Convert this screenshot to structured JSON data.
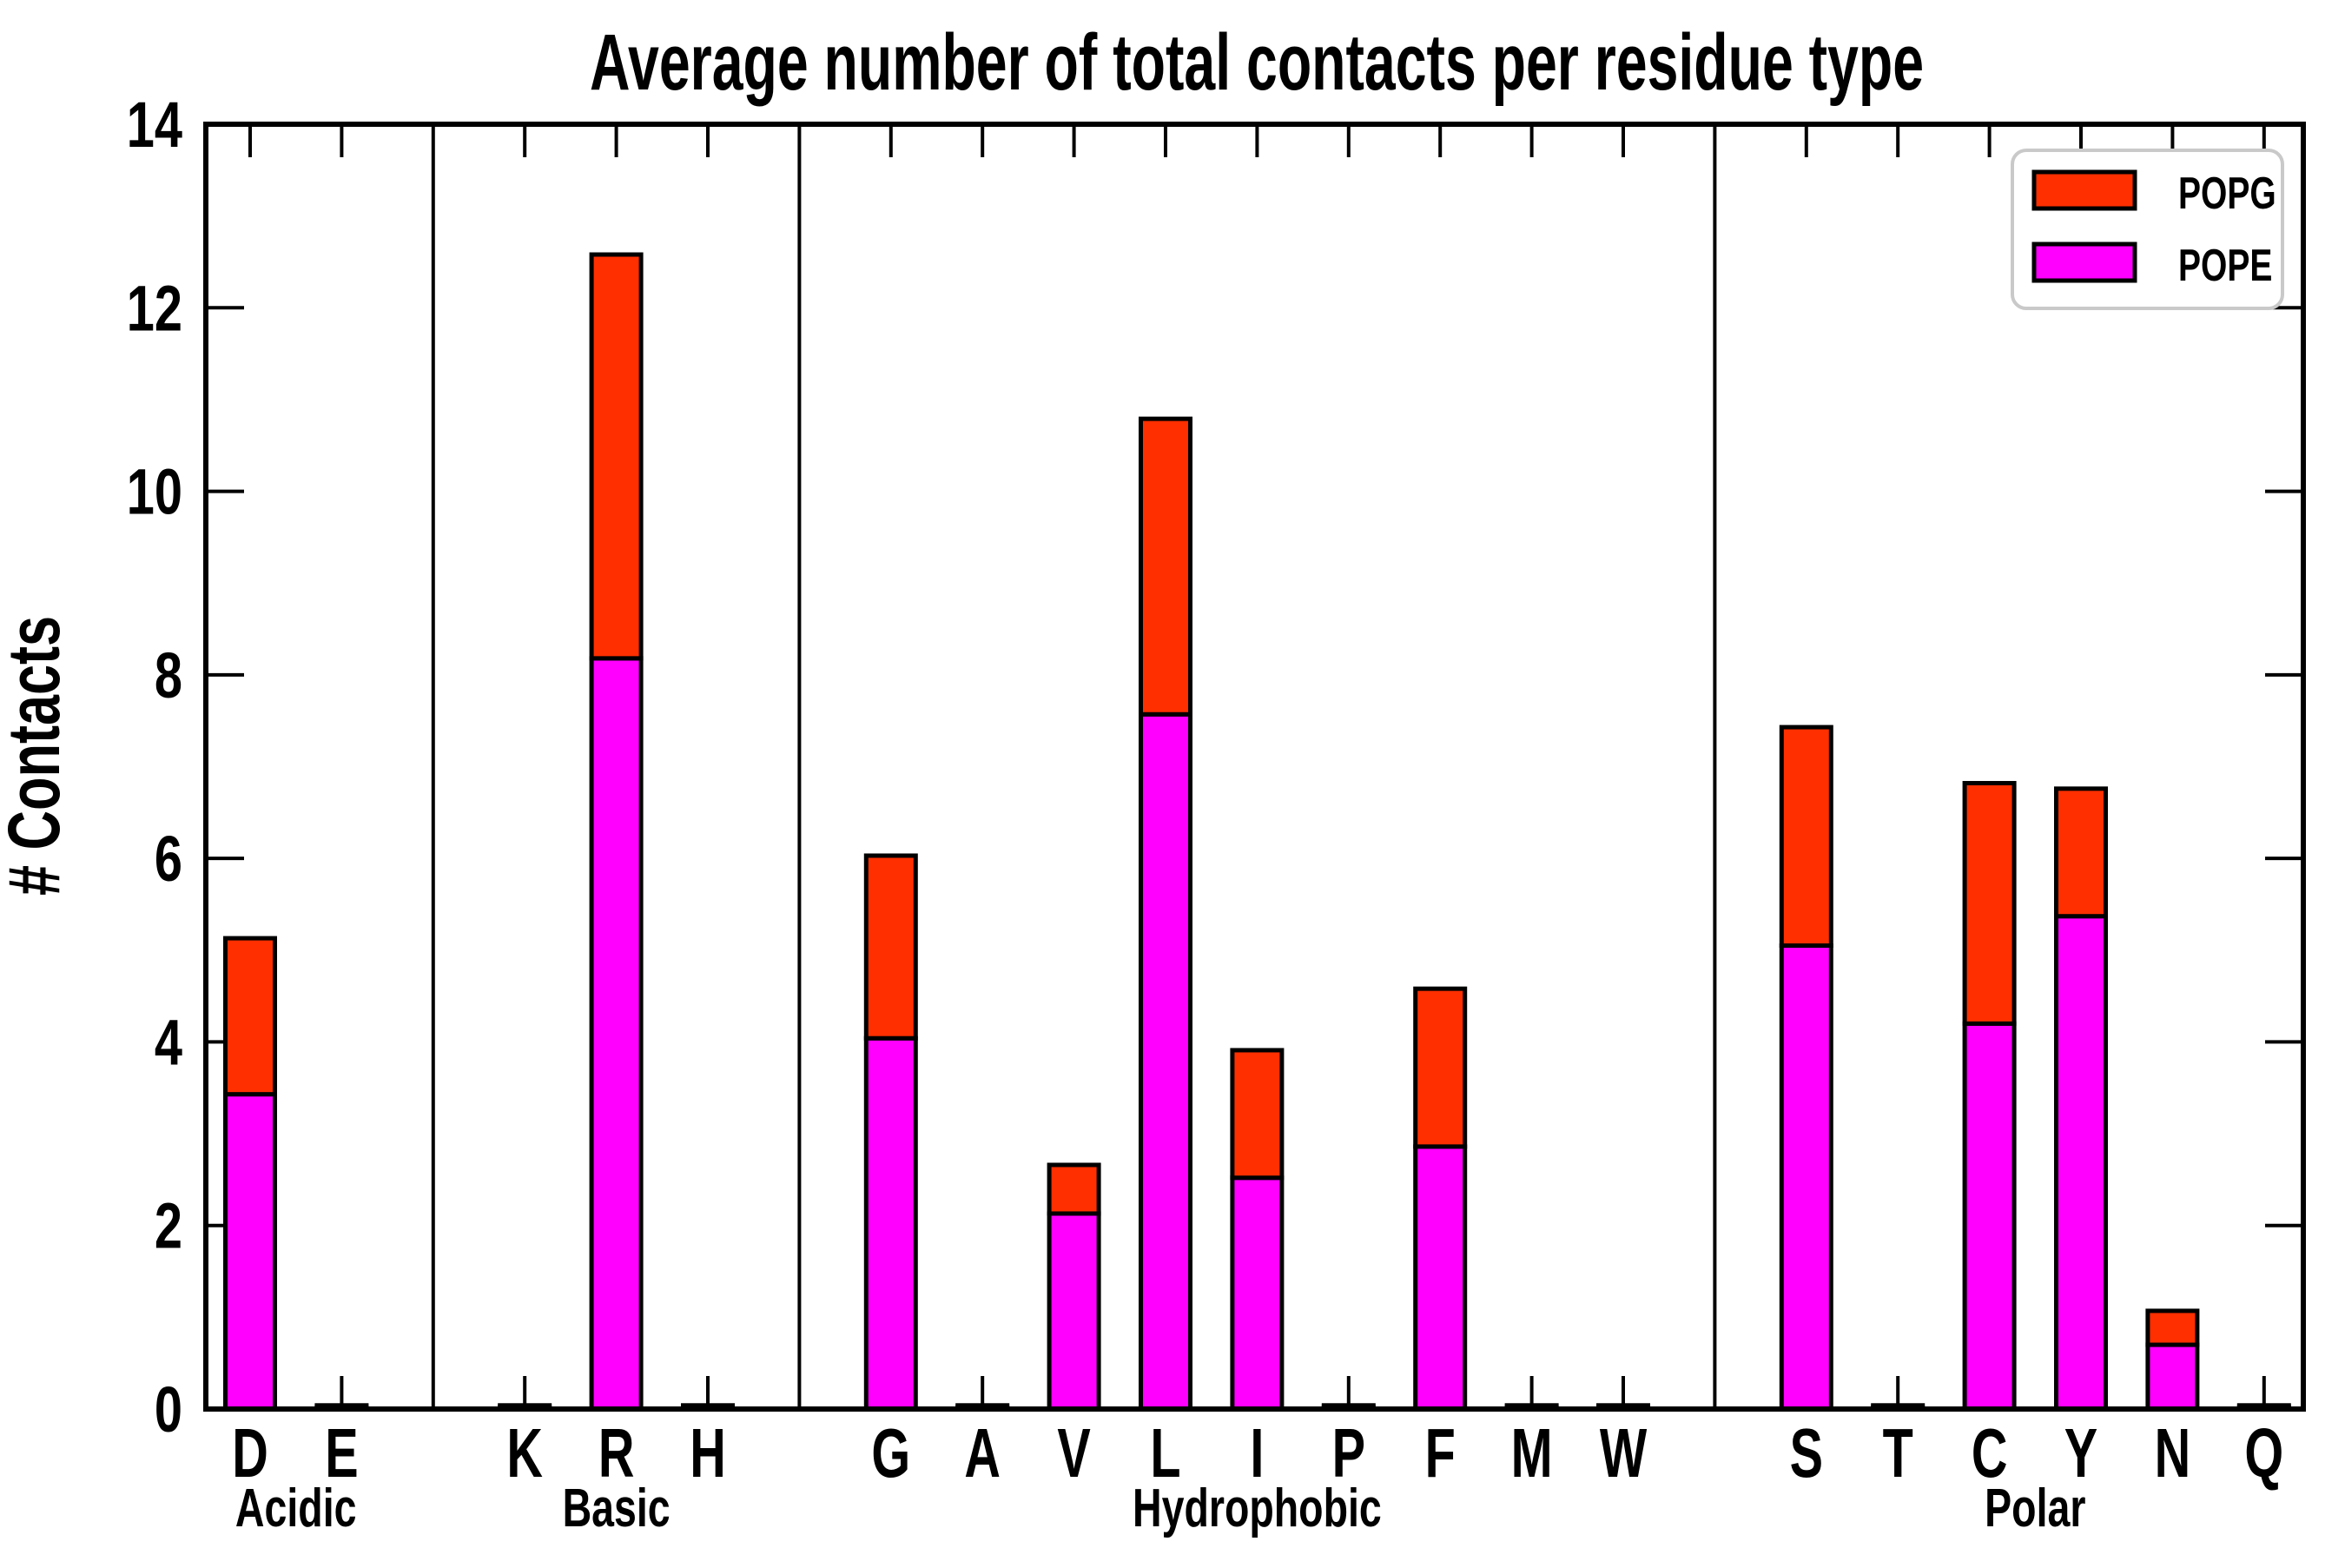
{
  "title": "Average number of total contacts per residue type",
  "ylabel": "# Contacts",
  "legend": {
    "items": [
      {
        "label": "POPG",
        "color": "#ff2f00"
      },
      {
        "label": "POPE",
        "color": "#ff00ff"
      }
    ],
    "position": "upper right",
    "border_color": "#c9c9c9"
  },
  "chart_data": {
    "type": "bar",
    "stacked": true,
    "title": "Average number of total contacts per residue type",
    "xlabel": "",
    "ylabel": "# Contacts",
    "ylim": [
      0,
      14
    ],
    "yticks": [
      0,
      2,
      4,
      6,
      8,
      10,
      12,
      14
    ],
    "grid": false,
    "legend_position": "upper right",
    "groups": [
      {
        "label": "Acidic",
        "categories": [
          "D",
          "E"
        ]
      },
      {
        "label": "Basic",
        "categories": [
          "K",
          "R",
          "H"
        ]
      },
      {
        "label": "Hydrophobic",
        "categories": [
          "G",
          "A",
          "V",
          "L",
          "I",
          "P",
          "F",
          "M",
          "W"
        ]
      },
      {
        "label": "Polar",
        "categories": [
          "S",
          "T",
          "C",
          "Y",
          "N",
          "Q"
        ]
      }
    ],
    "categories": [
      "D",
      "E",
      "K",
      "R",
      "H",
      "G",
      "A",
      "V",
      "L",
      "I",
      "P",
      "F",
      "M",
      "W",
      "S",
      "T",
      "C",
      "Y",
      "N",
      "Q"
    ],
    "series": [
      {
        "name": "POPE",
        "color": "#ff00ff",
        "values": [
          3.43,
          0.02,
          0.02,
          8.18,
          0.02,
          4.04,
          0.02,
          2.13,
          7.57,
          2.52,
          0.02,
          2.86,
          0.02,
          0.02,
          5.05,
          0.02,
          4.2,
          5.37,
          0.7,
          0.02
        ]
      },
      {
        "name": "POPG",
        "color": "#ff2f00",
        "values": [
          1.7,
          0.02,
          0.02,
          4.4,
          0.02,
          1.99,
          0.02,
          0.53,
          3.22,
          1.39,
          0.02,
          1.72,
          0.02,
          0.02,
          2.38,
          0.02,
          2.62,
          1.39,
          0.37,
          0.02
        ]
      }
    ]
  }
}
